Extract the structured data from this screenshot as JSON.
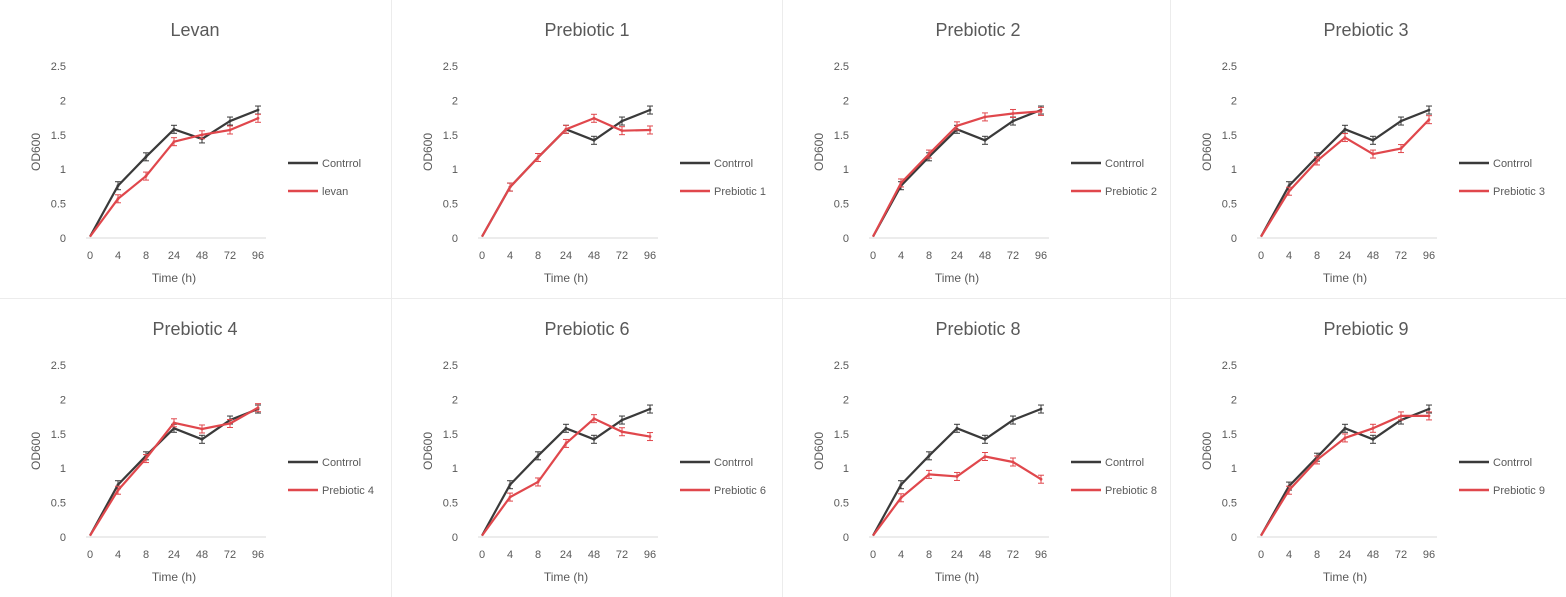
{
  "colors": {
    "control": "#3a3a3a",
    "prebiotic": "#e0474c",
    "axis": "#d9d9d9",
    "text": "#595959",
    "title": "#595959"
  },
  "chart_data": [
    {
      "type": "line",
      "title": "Levan",
      "xlabel": "Time (h)",
      "ylabel": "OD600",
      "categories": [
        "0",
        "4",
        "8",
        "24",
        "48",
        "72",
        "96"
      ],
      "ylim": [
        0,
        2.5
      ],
      "yticks": [
        "0",
        "0.5",
        "1",
        "1.5",
        "2",
        "2.5"
      ],
      "grid": false,
      "legend": "right",
      "error_bars": true,
      "series": [
        {
          "name": "Contrrol",
          "color": "#3a3a3a",
          "values": [
            0.02,
            0.76,
            1.18,
            1.58,
            1.44,
            1.7,
            1.86
          ]
        },
        {
          "name": "levan",
          "color": "#e0474c",
          "values": [
            0.02,
            0.57,
            0.9,
            1.4,
            1.5,
            1.57,
            1.74
          ]
        }
      ]
    },
    {
      "type": "line",
      "title": "Prebiotic 1",
      "xlabel": "Time (h)",
      "ylabel": "OD600",
      "categories": [
        "0",
        "4",
        "8",
        "24",
        "48",
        "72",
        "96"
      ],
      "ylim": [
        0,
        2.5
      ],
      "yticks": [
        "0",
        "0.5",
        "1",
        "1.5",
        "2",
        "2.5"
      ],
      "grid": false,
      "legend": "right",
      "error_bars": true,
      "series": [
        {
          "name": "Contrrol",
          "color": "#3a3a3a",
          "values": [
            0.02,
            0.74,
            1.17,
            1.58,
            1.42,
            1.7,
            1.86
          ]
        },
        {
          "name": "Prebiotic 1",
          "color": "#e0474c",
          "values": [
            0.02,
            0.74,
            1.17,
            1.58,
            1.74,
            1.56,
            1.57
          ]
        }
      ]
    },
    {
      "type": "line",
      "title": "Prebiotic 2",
      "xlabel": "Time (h)",
      "ylabel": "OD600",
      "categories": [
        "0",
        "4",
        "8",
        "24",
        "48",
        "72",
        "96"
      ],
      "ylim": [
        0,
        2.5
      ],
      "yticks": [
        "0",
        "0.5",
        "1",
        "1.5",
        "2",
        "2.5"
      ],
      "grid": false,
      "legend": "right",
      "error_bars": true,
      "series": [
        {
          "name": "Contrrol",
          "color": "#3a3a3a",
          "values": [
            0.02,
            0.76,
            1.18,
            1.58,
            1.42,
            1.7,
            1.86
          ]
        },
        {
          "name": "Prebiotic 2",
          "color": "#e0474c",
          "values": [
            0.02,
            0.8,
            1.22,
            1.63,
            1.76,
            1.81,
            1.84
          ]
        }
      ]
    },
    {
      "type": "line",
      "title": "Prebiotic 3",
      "xlabel": "Time (h)",
      "ylabel": "OD600",
      "categories": [
        "0",
        "4",
        "8",
        "24",
        "48",
        "72",
        "96"
      ],
      "ylim": [
        0,
        2.5
      ],
      "yticks": [
        "0",
        "0.5",
        "1",
        "1.5",
        "2",
        "2.5"
      ],
      "grid": false,
      "legend": "right",
      "error_bars": true,
      "series": [
        {
          "name": "Contrrol",
          "color": "#3a3a3a",
          "values": [
            0.02,
            0.76,
            1.18,
            1.58,
            1.42,
            1.7,
            1.86
          ]
        },
        {
          "name": "Prebiotic 3",
          "color": "#e0474c",
          "values": [
            0.02,
            0.68,
            1.12,
            1.46,
            1.22,
            1.3,
            1.72
          ]
        }
      ]
    },
    {
      "type": "line",
      "title": "Prebiotic 4",
      "xlabel": "Time (h)",
      "ylabel": "OD600",
      "categories": [
        "0",
        "4",
        "8",
        "24",
        "48",
        "72",
        "96"
      ],
      "ylim": [
        0,
        2.5
      ],
      "yticks": [
        "0",
        "0.5",
        "1",
        "1.5",
        "2",
        "2.5"
      ],
      "grid": false,
      "legend": "right",
      "error_bars": true,
      "series": [
        {
          "name": "Contrrol",
          "color": "#3a3a3a",
          "values": [
            0.02,
            0.76,
            1.18,
            1.58,
            1.42,
            1.7,
            1.86
          ]
        },
        {
          "name": "Prebiotic 4",
          "color": "#e0474c",
          "values": [
            0.02,
            0.68,
            1.14,
            1.66,
            1.57,
            1.65,
            1.88
          ]
        }
      ]
    },
    {
      "type": "line",
      "title": "Prebiotic 6",
      "xlabel": "Time (h)",
      "ylabel": "OD600",
      "categories": [
        "0",
        "4",
        "8",
        "24",
        "48",
        "72",
        "96"
      ],
      "ylim": [
        0,
        2.5
      ],
      "yticks": [
        "0",
        "0.5",
        "1",
        "1.5",
        "2",
        "2.5"
      ],
      "grid": false,
      "legend": "right",
      "error_bars": true,
      "series": [
        {
          "name": "Contrrol",
          "color": "#3a3a3a",
          "values": [
            0.02,
            0.76,
            1.18,
            1.58,
            1.42,
            1.7,
            1.86
          ]
        },
        {
          "name": "Prebiotic 6",
          "color": "#e0474c",
          "values": [
            0.02,
            0.58,
            0.8,
            1.36,
            1.72,
            1.53,
            1.46
          ]
        }
      ]
    },
    {
      "type": "line",
      "title": "Prebiotic 8",
      "xlabel": "Time (h)",
      "ylabel": "OD600",
      "categories": [
        "0",
        "4",
        "8",
        "24",
        "48",
        "72",
        "96"
      ],
      "ylim": [
        0,
        2.5
      ],
      "yticks": [
        "0",
        "0.5",
        "1",
        "1.5",
        "2",
        "2.5"
      ],
      "grid": false,
      "legend": "right",
      "error_bars": true,
      "series": [
        {
          "name": "Contrrol",
          "color": "#3a3a3a",
          "values": [
            0.02,
            0.76,
            1.18,
            1.58,
            1.42,
            1.7,
            1.86
          ]
        },
        {
          "name": "Prebiotic 8",
          "color": "#e0474c",
          "values": [
            0.02,
            0.57,
            0.91,
            0.88,
            1.17,
            1.09,
            0.84
          ]
        }
      ]
    },
    {
      "type": "line",
      "title": "Prebiotic 9",
      "xlabel": "Time (h)",
      "ylabel": "OD600",
      "categories": [
        "0",
        "4",
        "8",
        "24",
        "48",
        "72",
        "96"
      ],
      "ylim": [
        0,
        2.5
      ],
      "yticks": [
        "0",
        "0.5",
        "1",
        "1.5",
        "2",
        "2.5"
      ],
      "grid": false,
      "legend": "right",
      "error_bars": true,
      "series": [
        {
          "name": "Contrrol",
          "color": "#3a3a3a",
          "values": [
            0.02,
            0.74,
            1.16,
            1.58,
            1.42,
            1.7,
            1.86
          ]
        },
        {
          "name": "Prebiotic 9",
          "color": "#e0474c",
          "values": [
            0.02,
            0.68,
            1.12,
            1.44,
            1.58,
            1.76,
            1.76
          ]
        }
      ]
    }
  ]
}
